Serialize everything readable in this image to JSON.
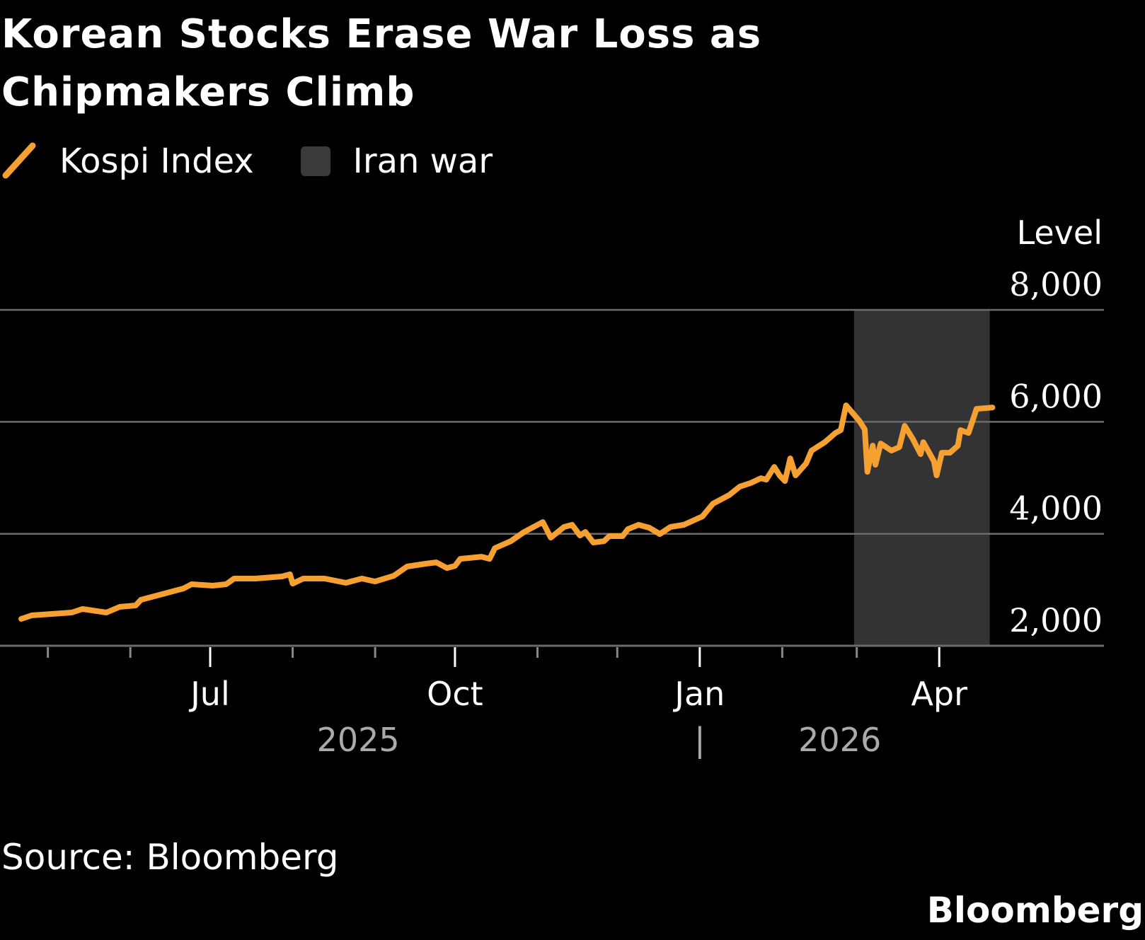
{
  "title": "Korean Stocks Erase War Loss as Chipmakers Climb",
  "source": "Source: Bloomberg",
  "logo": "Bloomberg",
  "colors": {
    "line": "#f7a032",
    "shading": "#333333",
    "grid": "#6b6b6b",
    "background": "#000000"
  },
  "chart_data": {
    "type": "line",
    "legend": [
      {
        "label": "Kospi Index",
        "kind": "line",
        "color": "#f7a032"
      },
      {
        "label": "Iran war",
        "kind": "shaded-region",
        "color": "#3a3a3a"
      }
    ],
    "legend_placement": "top-left",
    "ylabel": "Level",
    "ylim": [
      2000,
      8000
    ],
    "yticks": [
      2000,
      4000,
      6000,
      8000
    ],
    "ytick_labels": [
      "2,000",
      "4,000",
      "6,000",
      "8,000"
    ],
    "grid": true,
    "xlim": [
      "2025-04-21",
      "2026-04-21"
    ],
    "xticks": [
      {
        "date": "2025-07-01",
        "label": "Jul"
      },
      {
        "date": "2025-10-01",
        "label": "Oct"
      },
      {
        "date": "2026-01-01",
        "label": "Jan"
      },
      {
        "date": "2026-04-01",
        "label": "Apr"
      }
    ],
    "minor_ticks": [
      "2025-05-01",
      "2025-06-01",
      "2025-08-01",
      "2025-09-01",
      "2025-11-01",
      "2025-12-01",
      "2026-02-01",
      "2026-03-01"
    ],
    "year_labels": [
      {
        "label": "2025",
        "date": "2025-09-01"
      },
      {
        "label": "2026",
        "date": "2026-03-01"
      }
    ],
    "year_separator": {
      "label": "|",
      "date": "2026-01-01"
    },
    "shaded_region": {
      "name": "Iran war",
      "start": "2026-02-28",
      "end": "2026-04-20"
    },
    "series": [
      {
        "name": "Kospi Index",
        "x": [
          "2025-04-21",
          "2025-04-25",
          "2025-05-10",
          "2025-05-14",
          "2025-05-23",
          "2025-05-28",
          "2025-06-03",
          "2025-06-05",
          "2025-06-13",
          "2025-06-21",
          "2025-06-24",
          "2025-07-02",
          "2025-07-07",
          "2025-07-10",
          "2025-07-18",
          "2025-07-28",
          "2025-07-31",
          "2025-08-01",
          "2025-08-05",
          "2025-08-13",
          "2025-08-21",
          "2025-08-27",
          "2025-09-01",
          "2025-09-08",
          "2025-09-13",
          "2025-09-20",
          "2025-09-24",
          "2025-09-28",
          "2025-10-01",
          "2025-10-03",
          "2025-10-11",
          "2025-10-14",
          "2025-10-16",
          "2025-10-22",
          "2025-10-27",
          "2025-11-03",
          "2025-11-06",
          "2025-11-11",
          "2025-11-14",
          "2025-11-17",
          "2025-11-19",
          "2025-11-22",
          "2025-11-26",
          "2025-11-28",
          "2025-12-03",
          "2025-12-05",
          "2025-12-09",
          "2025-12-13",
          "2025-12-17",
          "2025-12-21",
          "2025-12-26",
          "2026-01-02",
          "2026-01-06",
          "2026-01-12",
          "2026-01-16",
          "2026-01-20",
          "2026-01-24",
          "2026-01-26",
          "2026-01-29",
          "2026-01-31",
          "2026-02-02",
          "2026-02-04",
          "2026-02-06",
          "2026-02-10",
          "2026-02-12",
          "2026-02-17",
          "2026-02-21",
          "2026-02-23",
          "2026-02-25",
          "2026-03-02",
          "2026-03-04",
          "2026-03-05",
          "2026-03-07",
          "2026-03-08",
          "2026-03-10",
          "2026-03-14",
          "2026-03-17",
          "2026-03-19",
          "2026-03-22",
          "2026-03-25",
          "2026-03-26",
          "2026-03-30",
          "2026-03-31",
          "2026-04-02",
          "2026-04-05",
          "2026-04-08",
          "2026-04-09",
          "2026-04-12",
          "2026-04-15",
          "2026-04-21"
        ],
        "values": [
          2480,
          2543,
          2594,
          2657,
          2594,
          2695,
          2720,
          2821,
          2922,
          3023,
          3099,
          3074,
          3099,
          3200,
          3200,
          3238,
          3276,
          3111,
          3200,
          3200,
          3124,
          3200,
          3149,
          3250,
          3415,
          3465,
          3490,
          3389,
          3427,
          3553,
          3591,
          3553,
          3743,
          3869,
          4033,
          4210,
          3932,
          4122,
          4160,
          3970,
          4033,
          3844,
          3869,
          3958,
          3958,
          4084,
          4160,
          4109,
          3996,
          4122,
          4160,
          4311,
          4539,
          4690,
          4842,
          4905,
          4993,
          4968,
          5195,
          5044,
          4943,
          5347,
          5044,
          5259,
          5486,
          5637,
          5802,
          5852,
          6294,
          6016,
          5865,
          5107,
          5574,
          5233,
          5612,
          5486,
          5549,
          5928,
          5700,
          5423,
          5637,
          5297,
          5044,
          5448,
          5448,
          5574,
          5852,
          5802,
          6231,
          6256
        ]
      }
    ]
  }
}
